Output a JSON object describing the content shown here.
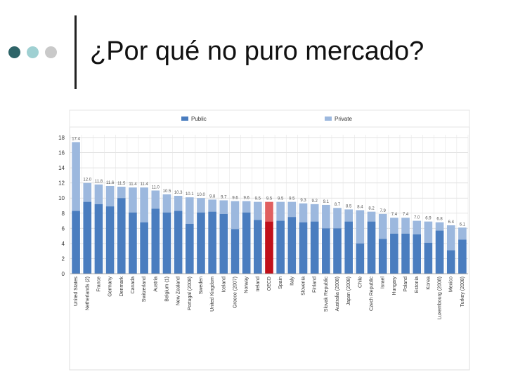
{
  "slide": {
    "title": "¿Por qué no puro mercado?",
    "bullet_colors": [
      "#2e6468",
      "#9fd0d2",
      "#c9c9c9"
    ]
  },
  "chart_data": {
    "type": "bar",
    "stacked": true,
    "title": "",
    "xlabel": "",
    "ylabel": "",
    "ylim": [
      0,
      18
    ],
    "yticks": [
      0,
      2,
      4,
      6,
      8,
      10,
      12,
      14,
      16,
      18
    ],
    "grid": true,
    "legend_position": "top",
    "categories": [
      "United States",
      "Netherlands (2)",
      "France",
      "Germany",
      "Denmark",
      "Canada",
      "Switzerland",
      "Austria",
      "Belgium (1)",
      "New Zealand",
      "Portugal (2008)",
      "Sweden",
      "United Kingdom",
      "Iceland",
      "Greece (2007)",
      "Norway",
      "Ireland",
      "OECD",
      "Spain",
      "Italy",
      "Slovenia",
      "Finland",
      "Slovak Republic",
      "Australia (2008)",
      "Japan (2008)",
      "Chile",
      "Czech Republic",
      "Israel",
      "Hungary",
      "Poland",
      "Estonia",
      "Korea",
      "Luxembourg (2008)",
      "Mexico",
      "Turkey (2008)"
    ],
    "totals": [
      17.4,
      12.0,
      11.8,
      11.6,
      11.5,
      11.4,
      11.4,
      11.0,
      10.5,
      10.3,
      10.1,
      10.0,
      9.8,
      9.7,
      9.6,
      9.6,
      9.5,
      9.5,
      9.5,
      9.5,
      9.3,
      9.2,
      9.1,
      8.7,
      8.5,
      8.4,
      8.2,
      7.9,
      7.4,
      7.4,
      7.0,
      6.9,
      6.8,
      6.4,
      6.1
    ],
    "total_labels": [
      "17.4",
      "12.0",
      "11.8",
      "11.6",
      "11.5",
      "11.4",
      "11.4",
      "11.0",
      "10.5",
      "10.3",
      "10.1",
      "10.0",
      "9.8",
      "9.7",
      "9.6",
      "9.6",
      "9.5",
      "9.5",
      "9.5",
      "9.5",
      "9.3",
      "9.2",
      "9.1",
      "8.7",
      "8.5",
      "8.4",
      "8.2",
      "7.9",
      "7.4",
      "7.4",
      "7.0",
      "6.9",
      "6.8",
      "6.4",
      "6.1"
    ],
    "highlight_index": 17,
    "series": [
      {
        "name": "Public",
        "color": "#4a7dbf",
        "values": [
          8.3,
          9.5,
          9.2,
          8.9,
          10.0,
          8.1,
          6.8,
          8.6,
          8.1,
          8.3,
          6.6,
          8.1,
          8.2,
          7.9,
          5.9,
          8.1,
          7.1,
          6.9,
          7.0,
          7.5,
          6.8,
          6.9,
          6.0,
          6.0,
          6.9,
          4.0,
          6.9,
          4.6,
          5.3,
          5.3,
          5.2,
          4.1,
          5.7,
          3.1,
          4.5
        ]
      },
      {
        "name": "Private",
        "color": "#9cb8de",
        "values": [
          9.1,
          2.5,
          2.6,
          2.7,
          1.5,
          3.3,
          4.6,
          2.4,
          2.4,
          2.0,
          3.5,
          1.9,
          1.6,
          1.8,
          3.7,
          1.5,
          2.4,
          2.6,
          2.5,
          2.0,
          2.5,
          2.3,
          3.1,
          2.7,
          1.6,
          4.4,
          1.3,
          3.3,
          2.1,
          2.1,
          1.8,
          2.8,
          1.1,
          3.3,
          1.6
        ]
      }
    ],
    "highlight_colors": {
      "public": "#c0101a",
      "private": "#e06060"
    }
  }
}
